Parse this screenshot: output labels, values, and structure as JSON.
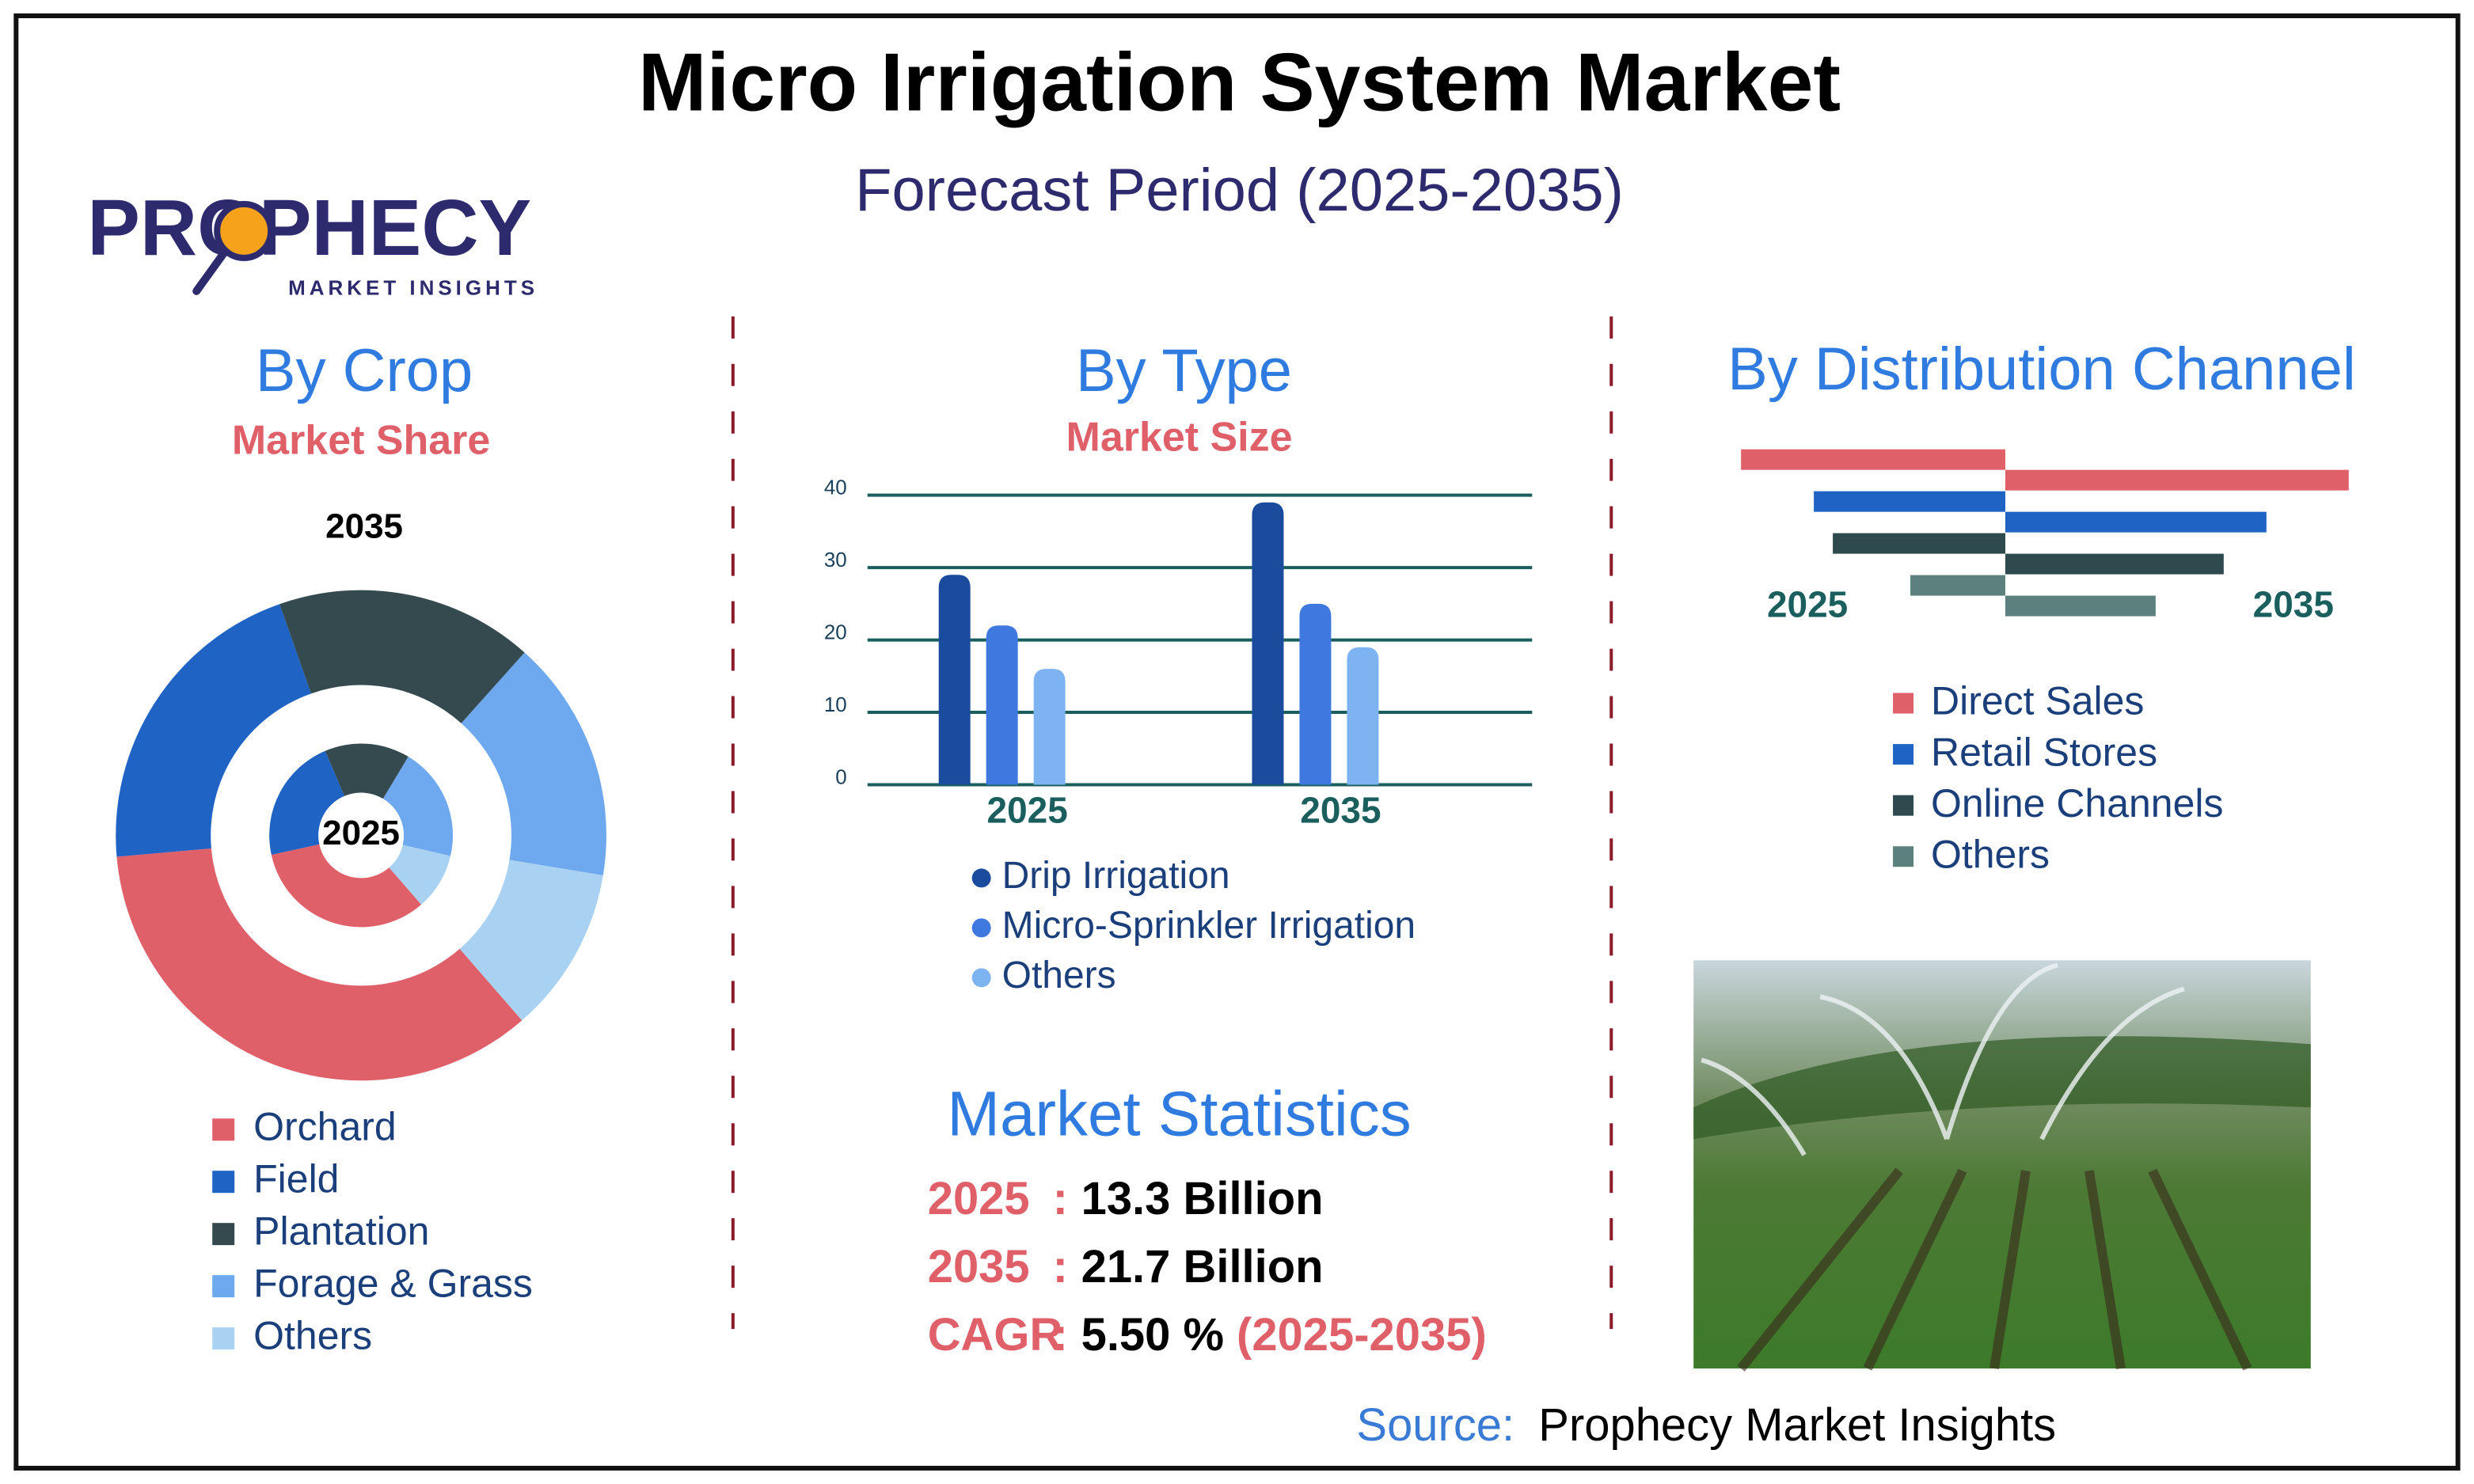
{
  "header": {
    "title": "Micro Irrigation System Market",
    "subtitle": "Forecast Period (2025-2035)"
  },
  "logo": {
    "name": "PROPHECY",
    "tagline": "MARKET INSIGHTS"
  },
  "chart_data": [
    {
      "type": "donut",
      "title": "By Crop",
      "subtitle": "Market Share",
      "categories": [
        "Orchard",
        "Field",
        "Plantation",
        "Forage & Grass",
        "Others"
      ],
      "colors": [
        "#e0606a",
        "#1f63c4",
        "#344a4f",
        "#6ea8ee",
        "#a9d1f2"
      ],
      "series": [
        {
          "name": "2025",
          "values": [
            33,
            22,
            15,
            20,
            10
          ]
        },
        {
          "name": "2035",
          "values": [
            35,
            21,
            17,
            16,
            11
          ]
        }
      ]
    },
    {
      "type": "bar",
      "title": "By Type",
      "subtitle": "Market Size",
      "categories": [
        "2025",
        "2035"
      ],
      "series": [
        {
          "name": "Drip Irrigation",
          "color": "#1a4b9c",
          "values": [
            29,
            39
          ]
        },
        {
          "name": "Micro-Sprinkler Irrigation",
          "color": "#3f79e0",
          "values": [
            22,
            25
          ]
        },
        {
          "name": "Others",
          "color": "#7db3f0",
          "values": [
            16,
            19
          ]
        }
      ],
      "ylim": [
        0,
        40
      ],
      "yticks": [
        0,
        10,
        20,
        30,
        40
      ],
      "grid": true
    },
    {
      "type": "butterfly",
      "title": "By Distribution Channel",
      "categories": [
        "Direct Sales",
        "Retail Stores",
        "Online Channels",
        "Others"
      ],
      "colors": [
        "#e0606a",
        "#1f63c4",
        "#2f4a4f",
        "#5b807d"
      ],
      "series": [
        {
          "name": "2025",
          "values": [
            167,
            121,
            109,
            60
          ]
        },
        {
          "name": "2035",
          "values": [
            217,
            165,
            138,
            95
          ]
        }
      ]
    }
  ],
  "statistics": {
    "title": "Market Statistics",
    "separator": ":",
    "rows": [
      {
        "label": "2025",
        "value": "13.3 Billion"
      },
      {
        "label": "2035",
        "value": "21.7 Billion"
      },
      {
        "label": "CAGR",
        "value": "5.50 %",
        "period": "(2025-2035)"
      }
    ]
  },
  "source": {
    "label": "Source:",
    "text": "Prophecy Market Insights"
  }
}
